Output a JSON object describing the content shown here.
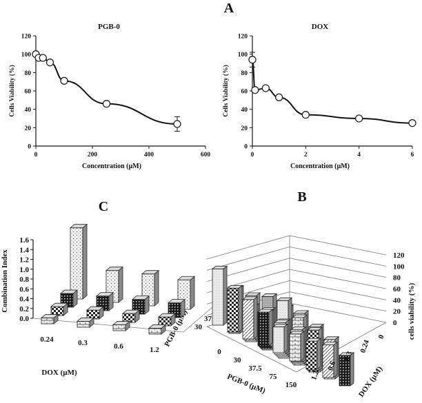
{
  "panel_labels": {
    "a": "A",
    "b": "B",
    "c": "C"
  },
  "chart_data": [
    {
      "type": "line",
      "panel": "A",
      "title": "PGB-0",
      "xlabel": "Concentration (µM)",
      "ylabel": "Cells Viability  (%)",
      "xlim": [
        0,
        600
      ],
      "ylim": [
        0,
        120
      ],
      "xticks": [
        "0",
        "200",
        "400",
        "600"
      ],
      "yticks": [
        "0",
        "20",
        "40",
        "60",
        "80",
        "100",
        "120"
      ],
      "x": [
        0,
        10,
        25,
        50,
        100,
        250,
        500
      ],
      "y": [
        100,
        96,
        96,
        91,
        71,
        46,
        24
      ],
      "error": [
        0,
        0,
        0,
        0,
        0,
        0,
        8
      ],
      "grid": false
    },
    {
      "type": "line",
      "panel": "A",
      "title": "DOX",
      "xlabel": "Concentration (µM)",
      "ylabel": "Cells Viability  (%)",
      "xlim": [
        0,
        6
      ],
      "ylim": [
        0,
        120
      ],
      "xticks": [
        "0",
        "2",
        "4",
        "6"
      ],
      "yticks": [
        "0",
        "20",
        "40",
        "60",
        "80",
        "100",
        "120"
      ],
      "x": [
        0,
        0.1,
        0.5,
        1,
        2,
        4,
        6
      ],
      "y": [
        94,
        61,
        63,
        53,
        34,
        30,
        25
      ],
      "error": [
        8,
        0,
        0,
        0,
        0,
        0,
        0
      ],
      "grid": false
    },
    {
      "type": "bar",
      "panel": "C",
      "subtype": "3d-bar",
      "ylabel": "Combination Index",
      "xlabel": "DOX (µM)",
      "zlabel": "PGB-0 (µM)",
      "ylim": [
        0,
        1.6
      ],
      "yticks": [
        "0.0",
        "0.2",
        "0.4",
        "0.6",
        "0.8",
        "1.0",
        "1.2",
        "1.4",
        "1.6"
      ],
      "categories": [
        "0.24",
        "0.3",
        "0.6",
        "1.2"
      ],
      "depth_categories": [
        "30",
        "37.5",
        "75",
        "150"
      ],
      "series": [
        {
          "name": "30",
          "values": [
            0.12,
            0.12,
            0.12,
            0.12
          ],
          "pattern": "brick"
        },
        {
          "name": "37.5",
          "values": [
            0.18,
            0.18,
            0.18,
            0.18
          ],
          "pattern": "check"
        },
        {
          "name": "75",
          "values": [
            0.28,
            0.3,
            0.3,
            0.3
          ],
          "pattern": "dark"
        },
        {
          "name": "150",
          "values": [
            1.45,
            0.65,
            0.65,
            0.6
          ],
          "pattern": "dots"
        }
      ]
    },
    {
      "type": "bar",
      "panel": "B",
      "subtype": "3d-bar",
      "zlabel": "cells viability (%)",
      "xlabel": "PGB-0 (µM)",
      "ylabel": "DOX (µM)",
      "zlim": [
        0,
        120
      ],
      "zticks": [
        "0",
        "20",
        "40",
        "60",
        "80",
        "100",
        "120"
      ],
      "categories": [
        "0",
        "30",
        "37.5",
        "75",
        "150"
      ],
      "depth_categories": [
        "0",
        "0.24",
        "0.3",
        "0.6",
        "1.2"
      ],
      "series": [
        {
          "name": "0",
          "values": [
            100,
            80,
            82,
            95,
            90
          ]
        },
        {
          "name": "0.24",
          "values": [
            78,
            60,
            68,
            100,
            92
          ]
        },
        {
          "name": "0.3",
          "values": [
            70,
            62,
            60,
            82,
            80
          ]
        },
        {
          "name": "0.6",
          "values": [
            60,
            56,
            58,
            72,
            70
          ]
        },
        {
          "name": "1.2",
          "values": [
            46,
            48,
            50,
            58,
            54
          ]
        }
      ]
    }
  ]
}
